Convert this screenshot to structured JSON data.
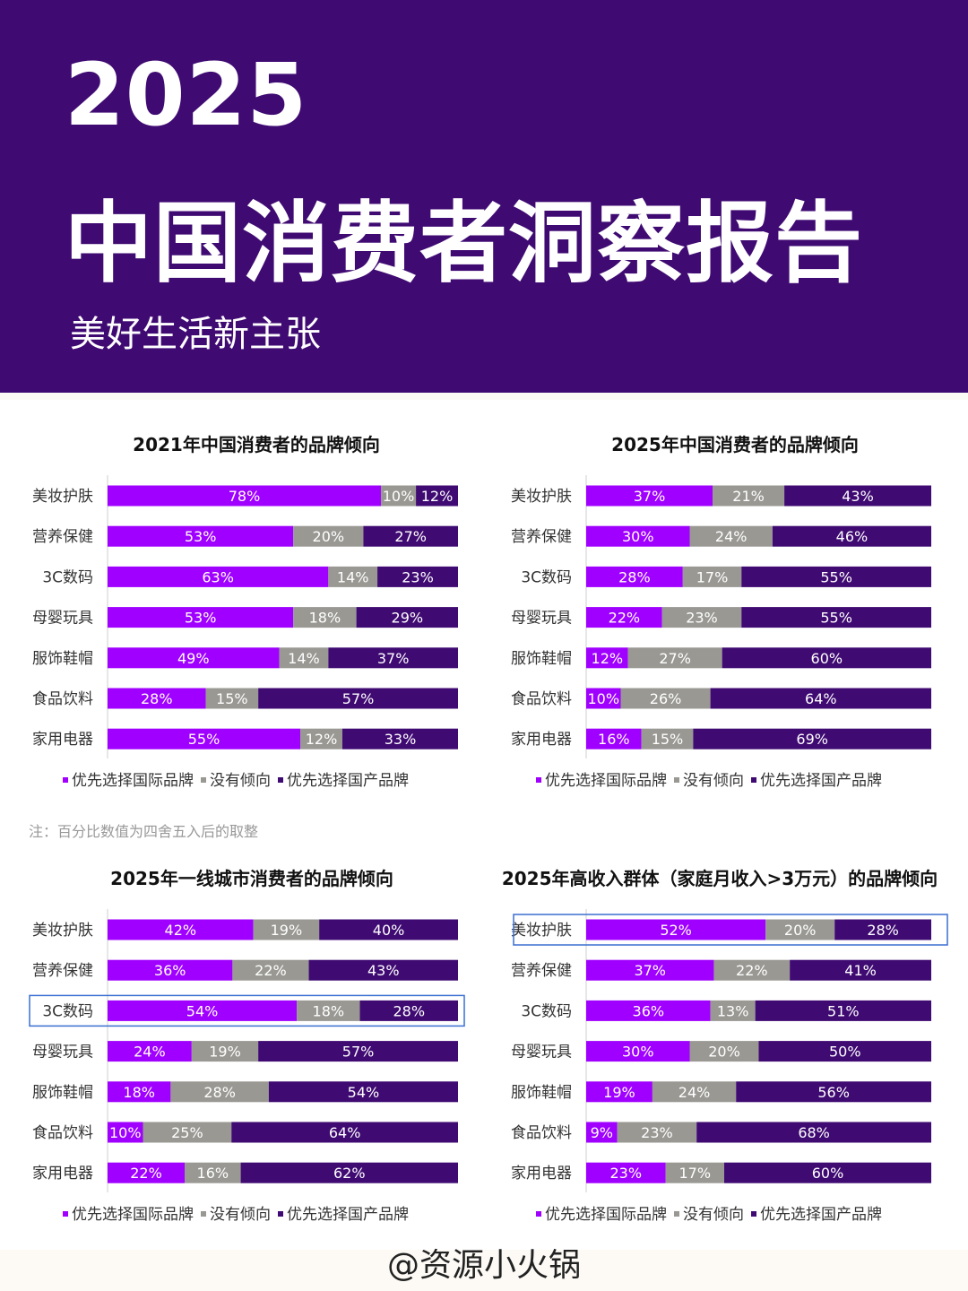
{
  "header": {
    "year": "2025",
    "title": "中国消费者洞察报告",
    "subtitle": "美好生活新主张"
  },
  "note": "注：百分比数值为四舍五入后的取整",
  "watermark": "@资源小火锅",
  "colors": {
    "header_bg": "#3f0a72",
    "international": "#a000ff",
    "neutral": "#999893",
    "domestic": "#3f0a72"
  },
  "legend": [
    "优先选择国际品牌",
    "没有倾向",
    "优先选择国产品牌"
  ],
  "chart_data": [
    {
      "type": "bar",
      "stacked": "100%",
      "orientation": "horizontal",
      "title": "2021年中国消费者的品牌倾向",
      "categories": [
        "美妆护肤",
        "营养保健",
        "3C数码",
        "母婴玩具",
        "服饰鞋帽",
        "食品饮料",
        "家用电器"
      ],
      "series": [
        {
          "name": "优先选择国际品牌",
          "values": [
            78,
            53,
            63,
            53,
            49,
            28,
            55
          ]
        },
        {
          "name": "没有倾向",
          "values": [
            10,
            20,
            14,
            18,
            14,
            15,
            12
          ]
        },
        {
          "name": "优先选择国产品牌",
          "values": [
            12,
            27,
            23,
            29,
            37,
            57,
            33
          ]
        }
      ],
      "highlight": null
    },
    {
      "type": "bar",
      "stacked": "100%",
      "orientation": "horizontal",
      "title": "2025年中国消费者的品牌倾向",
      "categories": [
        "美妆护肤",
        "营养保健",
        "3C数码",
        "母婴玩具",
        "服饰鞋帽",
        "食品饮料",
        "家用电器"
      ],
      "series": [
        {
          "name": "优先选择国际品牌",
          "values": [
            37,
            30,
            28,
            22,
            12,
            10,
            16
          ]
        },
        {
          "name": "没有倾向",
          "values": [
            21,
            24,
            17,
            23,
            27,
            26,
            15
          ]
        },
        {
          "name": "优先选择国产品牌",
          "values": [
            43,
            46,
            55,
            55,
            60,
            64,
            69
          ]
        }
      ],
      "highlight": null
    },
    {
      "type": "bar",
      "stacked": "100%",
      "orientation": "horizontal",
      "title": "2025年一线城市消费者的品牌倾向",
      "categories": [
        "美妆护肤",
        "营养保健",
        "3C数码",
        "母婴玩具",
        "服饰鞋帽",
        "食品饮料",
        "家用电器"
      ],
      "series": [
        {
          "name": "优先选择国际品牌",
          "values": [
            42,
            36,
            54,
            24,
            18,
            10,
            22
          ]
        },
        {
          "name": "没有倾向",
          "values": [
            19,
            22,
            18,
            19,
            28,
            25,
            16
          ]
        },
        {
          "name": "优先选择国产品牌",
          "values": [
            40,
            43,
            28,
            57,
            54,
            64,
            62
          ]
        }
      ],
      "highlight": "3C数码"
    },
    {
      "type": "bar",
      "stacked": "100%",
      "orientation": "horizontal",
      "title": "2025年高收入群体（家庭月收入>3万元）的品牌倾向",
      "categories": [
        "美妆护肤",
        "营养保健",
        "3C数码",
        "母婴玩具",
        "服饰鞋帽",
        "食品饮料",
        "家用电器"
      ],
      "series": [
        {
          "name": "优先选择国际品牌",
          "values": [
            52,
            37,
            36,
            30,
            19,
            9,
            23
          ]
        },
        {
          "name": "没有倾向",
          "values": [
            20,
            22,
            13,
            20,
            24,
            23,
            17
          ]
        },
        {
          "name": "优先选择国产品牌",
          "values": [
            28,
            41,
            51,
            50,
            56,
            68,
            60
          ]
        }
      ],
      "highlight": "美妆护肤"
    }
  ]
}
